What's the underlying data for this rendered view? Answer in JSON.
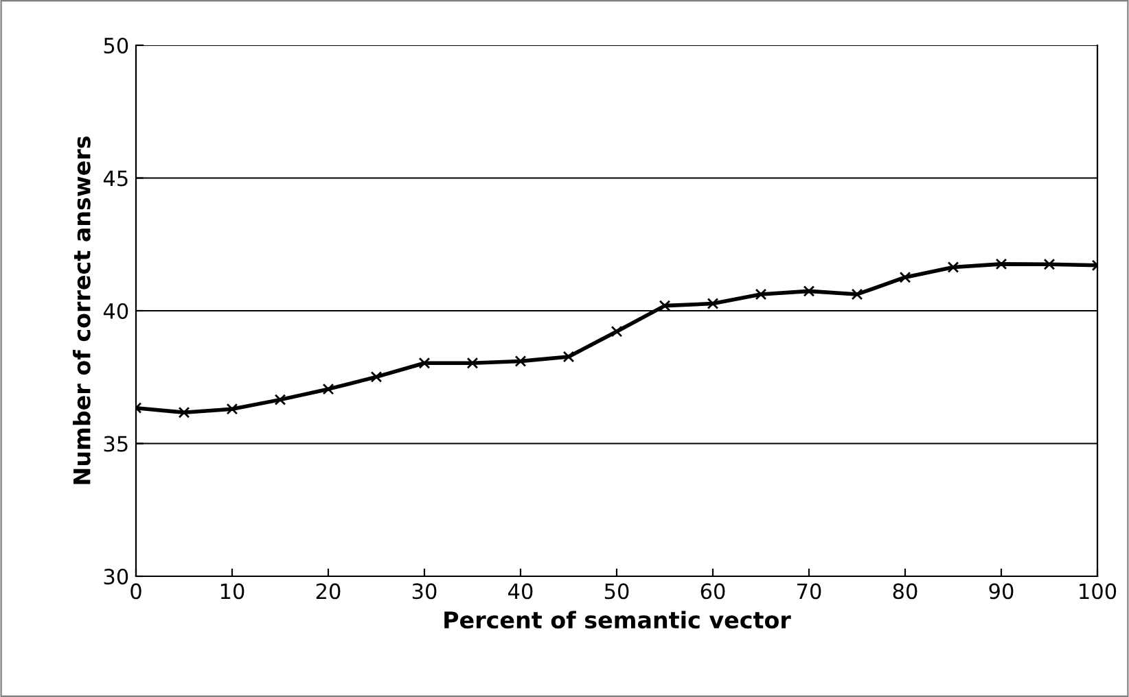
{
  "chart_data": {
    "type": "line",
    "xlabel": "Percent of semantic vector",
    "ylabel": "Number of correct answers",
    "x": [
      0,
      5,
      10,
      15,
      20,
      25,
      30,
      35,
      40,
      45,
      50,
      55,
      60,
      65,
      70,
      75,
      80,
      85,
      90,
      95,
      100
    ],
    "series": [
      {
        "color": "#000000",
        "values": [
          36.34,
          36.17,
          36.3,
          36.65,
          37.05,
          37.51,
          38.03,
          38.03,
          38.1,
          38.27,
          39.22,
          40.19,
          40.27,
          40.62,
          40.74,
          40.62,
          41.26,
          41.64,
          41.76,
          41.75,
          41.71
        ]
      }
    ],
    "xlim": [
      0,
      100
    ],
    "xticks": [
      0,
      10,
      20,
      30,
      40,
      50,
      60,
      70,
      80,
      90,
      100
    ],
    "ylim": [
      30,
      50
    ],
    "yticks": [
      30,
      35,
      40,
      45,
      50
    ],
    "grid": "y",
    "marker": "cross",
    "line_style": "solid",
    "legend": false
  }
}
